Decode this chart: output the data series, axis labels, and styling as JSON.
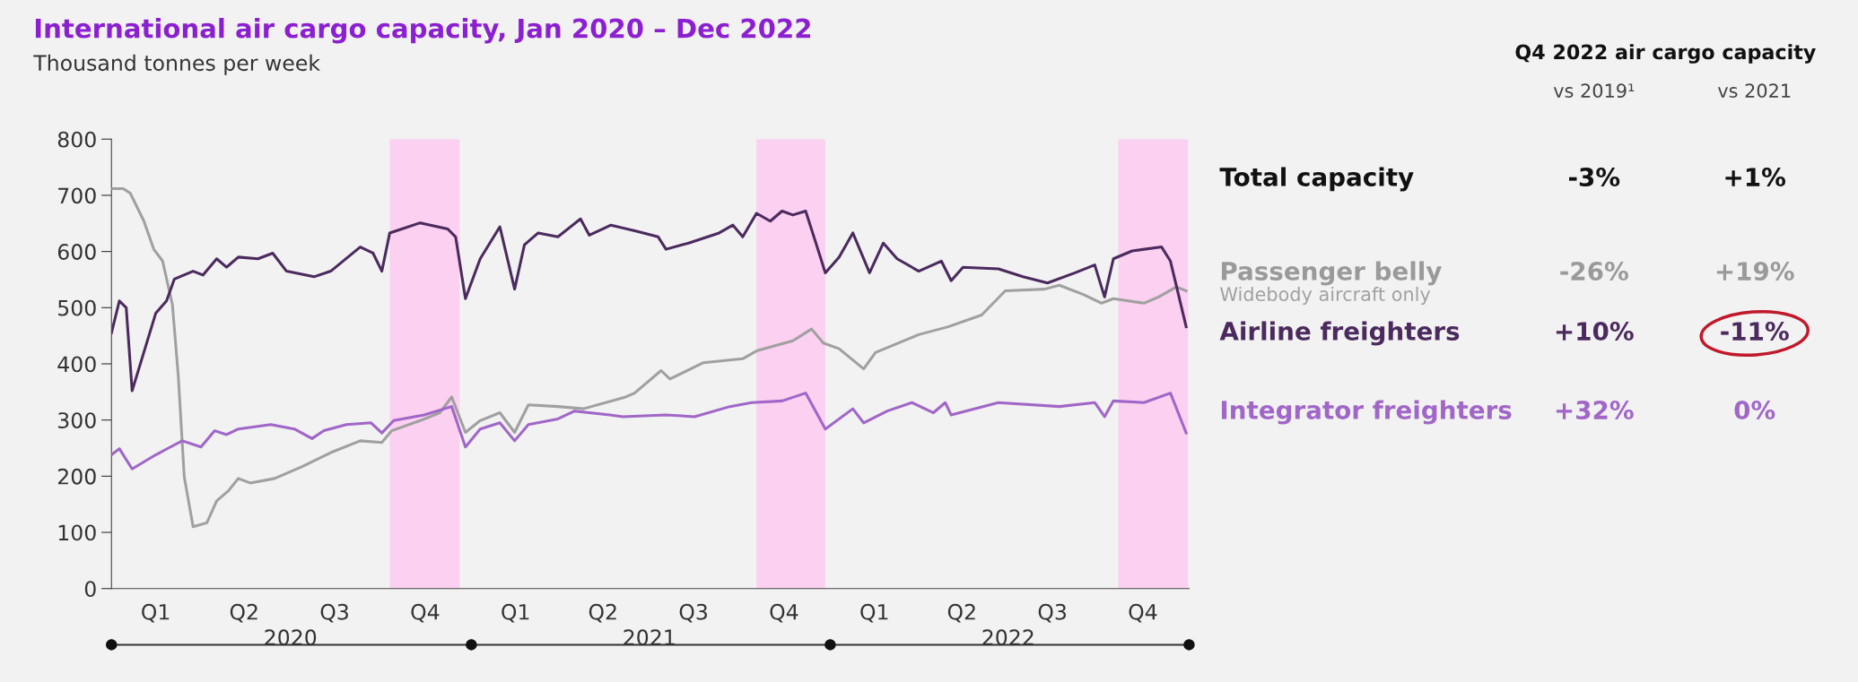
{
  "chart_data": [
    {
      "type": "line",
      "title": "International air cargo capacity, Jan 2020 – Dec 2022",
      "subtitle": "Thousand tonnes per week",
      "xlim": [
        "2020-01-01",
        "2023-01-01"
      ],
      "ylim": [
        0,
        800
      ],
      "yticks": [
        0,
        100,
        200,
        300,
        400,
        500,
        600,
        700,
        800
      ],
      "xticks": [
        {
          "value": "2020-02-15",
          "label": "Q1"
        },
        {
          "value": "2020-05-15",
          "label": "Q2"
        },
        {
          "value": "2020-08-15",
          "label": "Q3"
        },
        {
          "value": "2020-11-15",
          "label": "Q4"
        },
        {
          "value": "2021-02-15",
          "label": "Q1"
        },
        {
          "value": "2021-05-15",
          "label": "Q2"
        },
        {
          "value": "2021-08-15",
          "label": "Q3"
        },
        {
          "value": "2021-11-15",
          "label": "Q4"
        },
        {
          "value": "2022-02-15",
          "label": "Q1"
        },
        {
          "value": "2022-05-15",
          "label": "Q2"
        },
        {
          "value": "2022-08-15",
          "label": "Q3"
        },
        {
          "value": "2022-11-15",
          "label": "Q4"
        }
      ],
      "x2lim": [
        "2020-01-01",
        "2023-01-01"
      ],
      "x2ticks": [
        {
          "value": "2020-07-01",
          "label": "2020"
        },
        {
          "value": "2021-07-01",
          "label": "2021"
        },
        {
          "value": "2022-07-01",
          "label": "2022"
        }
      ],
      "grid": false,
      "legend": false,
      "line_style": "solid",
      "marker": "none",
      "bands": [
        {
          "axis": "x",
          "from": "2020-10-10",
          "to": "2020-12-20",
          "color": "#fbd0f0"
        },
        {
          "axis": "x",
          "from": "2021-10-18",
          "to": "2021-12-27",
          "color": "#fbd0f0"
        },
        {
          "axis": "x",
          "from": "2022-10-21",
          "to": "2022-12-31",
          "color": "#fbd0f0"
        }
      ],
      "series": [
        {
          "color": "#a0a0a0",
          "x": [
            "2020-01-01",
            "2020-01-13",
            "2020-01-20",
            "2020-02-03",
            "2020-02-13",
            "2020-02-22",
            "2020-03-03",
            "2020-03-09",
            "2020-03-15",
            "2020-03-24",
            "2020-04-07",
            "2020-04-17",
            "2020-04-29",
            "2020-05-09",
            "2020-05-21",
            "2020-06-15",
            "2020-07-13",
            "2020-08-11",
            "2020-09-10",
            "2020-10-02",
            "2020-10-12",
            "2020-11-10",
            "2020-11-30",
            "2020-12-12",
            "2020-12-26",
            "2021-01-10",
            "2021-01-30",
            "2021-02-14",
            "2021-02-28",
            "2021-03-30",
            "2021-04-25",
            "2021-06-07",
            "2021-06-16",
            "2021-07-13",
            "2021-07-22",
            "2021-08-25",
            "2021-10-04",
            "2021-10-18",
            "2021-11-24",
            "2021-12-13",
            "2021-12-25",
            "2022-01-10",
            "2022-02-04",
            "2022-02-16",
            "2022-04-01",
            "2022-05-01",
            "2022-06-04",
            "2022-06-28",
            "2022-08-07",
            "2022-08-22",
            "2022-09-16",
            "2022-10-04",
            "2022-10-16",
            "2022-11-16",
            "2022-12-01",
            "2022-12-19",
            "2022-12-29"
          ],
          "values": [
            712,
            712,
            704,
            654,
            604,
            583,
            505,
            377,
            199,
            110,
            117,
            156,
            174,
            196,
            188,
            196,
            217,
            242,
            263,
            260,
            281,
            299,
            313,
            341,
            278,
            299,
            313,
            278,
            327,
            324,
            320,
            341,
            348,
            388,
            373,
            402,
            409,
            423,
            441,
            462,
            437,
            427,
            391,
            420,
            452,
            466,
            487,
            530,
            533,
            540,
            523,
            508,
            516,
            508,
            519,
            537,
            530
          ]
        },
        {
          "color": "#a066c8",
          "x": [
            "2020-01-01",
            "2020-01-09",
            "2020-01-22",
            "2020-02-15",
            "2020-03-01",
            "2020-03-13",
            "2020-04-01",
            "2020-04-15",
            "2020-04-27",
            "2020-05-09",
            "2020-06-11",
            "2020-07-05",
            "2020-07-23",
            "2020-08-04",
            "2020-08-27",
            "2020-09-21",
            "2020-10-02",
            "2020-10-14",
            "2020-11-14",
            "2020-12-12",
            "2020-12-26",
            "2021-01-10",
            "2021-01-30",
            "2021-02-14",
            "2021-02-28",
            "2021-03-30",
            "2021-04-16",
            "2021-05-22",
            "2021-06-04",
            "2021-07-18",
            "2021-08-16",
            "2021-09-21",
            "2021-10-13",
            "2021-11-13",
            "2021-12-07",
            "2021-12-27",
            "2022-01-24",
            "2022-02-04",
            "2022-02-28",
            "2022-03-25",
            "2022-04-16",
            "2022-04-28",
            "2022-05-04",
            "2022-06-21",
            "2022-08-22",
            "2022-09-27",
            "2022-10-07",
            "2022-10-16",
            "2022-11-16",
            "2022-12-13",
            "2022-12-29"
          ],
          "values": [
            238,
            249,
            213,
            238,
            252,
            263,
            252,
            281,
            274,
            284,
            292,
            284,
            267,
            281,
            292,
            295,
            277,
            299,
            309,
            324,
            252,
            284,
            295,
            263,
            292,
            302,
            316,
            309,
            306,
            309,
            306,
            324,
            331,
            334,
            348,
            284,
            320,
            295,
            316,
            331,
            313,
            331,
            309,
            331,
            324,
            331,
            306,
            334,
            331,
            348,
            277
          ]
        },
        {
          "color": "#4b2a5e",
          "x": [
            "2020-01-01",
            "2020-01-09",
            "2020-01-16",
            "2020-01-22",
            "2020-02-15",
            "2020-02-26",
            "2020-03-05",
            "2020-03-24",
            "2020-04-03",
            "2020-04-17",
            "2020-04-27",
            "2020-05-09",
            "2020-05-29",
            "2020-06-13",
            "2020-06-27",
            "2020-07-25",
            "2020-08-11",
            "2020-09-10",
            "2020-09-23",
            "2020-10-02",
            "2020-10-10",
            "2020-11-10",
            "2020-12-08",
            "2020-12-16",
            "2020-12-26",
            "2021-01-10",
            "2021-01-30",
            "2021-02-14",
            "2021-02-24",
            "2021-03-10",
            "2021-03-30",
            "2021-04-22",
            "2021-05-01",
            "2021-05-23",
            "2021-06-18",
            "2021-07-10",
            "2021-07-18",
            "2021-08-10",
            "2021-09-10",
            "2021-09-24",
            "2021-10-04",
            "2021-10-18",
            "2021-11-01",
            "2021-11-13",
            "2021-11-24",
            "2021-12-07",
            "2021-12-18",
            "2021-12-27",
            "2022-01-10",
            "2022-01-24",
            "2022-02-10",
            "2022-02-24",
            "2022-03-10",
            "2022-04-01",
            "2022-04-24",
            "2022-05-04",
            "2022-05-16",
            "2022-06-21",
            "2022-07-16",
            "2022-08-10",
            "2022-09-07",
            "2022-09-27",
            "2022-10-07",
            "2022-10-16",
            "2022-11-04",
            "2022-12-04",
            "2022-12-13",
            "2022-12-29"
          ],
          "values": [
            455,
            512,
            500,
            352,
            490,
            512,
            551,
            565,
            558,
            587,
            572,
            590,
            587,
            597,
            565,
            555,
            565,
            608,
            597,
            565,
            633,
            651,
            640,
            626,
            516,
            587,
            644,
            533,
            612,
            633,
            626,
            658,
            629,
            647,
            636,
            626,
            604,
            615,
            633,
            647,
            626,
            668,
            654,
            672,
            665,
            672,
            612,
            562,
            590,
            633,
            562,
            615,
            587,
            565,
            583,
            548,
            572,
            569,
            555,
            544,
            562,
            576,
            519,
            587,
            601,
            608,
            583,
            466
          ]
        }
      ]
    },
    {
      "type": "other",
      "title": "Q4 2022 air cargo capacity",
      "categories": [
        "vs 2019¹",
        "vs 2021"
      ],
      "y_categories": [
        "Total capacity",
        "Passenger belly",
        "Airline freighters",
        "Integrator freighters"
      ],
      "colors": [
        "#111111",
        "#9a9a9a",
        "#4b2a5e",
        "#a066c8"
      ],
      "cell_labels": [
        [
          "-3%",
          "+1%"
        ],
        [
          "-26%",
          "+19%"
        ],
        [
          "+10%",
          "-11%"
        ],
        [
          "+32%",
          "0%"
        ]
      ],
      "annotations": [
        "Widebody aircraft only"
      ]
    }
  ]
}
